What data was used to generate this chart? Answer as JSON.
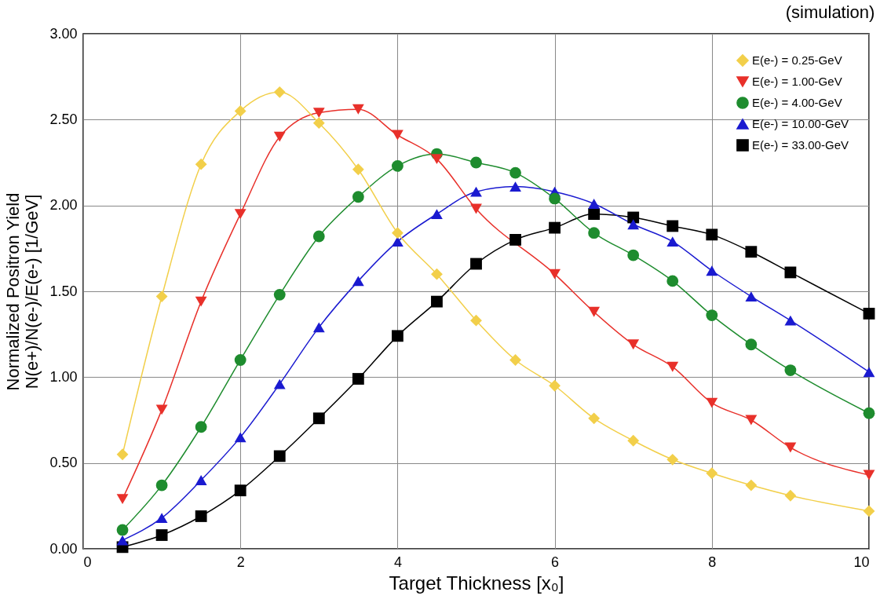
{
  "chart_data": {
    "type": "line",
    "title": "(simulation)",
    "xlabel": "Target Thickness [x₀]",
    "ylabel": "Normalized Positron Yield\nN(e+)/N(e-)/E(e-) [1/GeV]",
    "x": [
      0.5,
      1,
      1.5,
      2,
      2.5,
      3,
      3.5,
      4,
      4.5,
      5,
      5.5,
      6,
      6.5,
      7,
      7.5,
      8,
      8.5,
      9,
      10
    ],
    "series": [
      {
        "name": "E(e-) = 0.25-GeV",
        "color": "#f2cf4a",
        "marker": "diamond",
        "values": [
          0.55,
          1.47,
          2.24,
          2.55,
          2.66,
          2.48,
          2.21,
          1.84,
          1.6,
          1.33,
          1.1,
          0.95,
          0.76,
          0.63,
          0.52,
          0.44,
          0.37,
          0.31,
          0.22
        ]
      },
      {
        "name": "E(e-) = 1.00-GeV",
        "color": "#e8302a",
        "marker": "triangle-down",
        "values": [
          0.29,
          0.81,
          1.44,
          1.95,
          2.4,
          2.54,
          2.56,
          2.41,
          2.27,
          1.98,
          null,
          1.6,
          1.38,
          1.19,
          1.06,
          0.85,
          0.75,
          0.59,
          0.43
        ]
      },
      {
        "name": "E(e-) = 4.00-GeV",
        "color": "#1e8c2e",
        "marker": "circle",
        "values": [
          0.11,
          0.37,
          0.71,
          1.1,
          1.48,
          1.82,
          2.05,
          2.23,
          2.3,
          2.25,
          2.19,
          2.04,
          1.84,
          1.71,
          1.56,
          1.36,
          1.19,
          1.04,
          0.79
        ]
      },
      {
        "name": "E(e-) = 10.00-GeV",
        "color": "#1a1ad0",
        "marker": "triangle-up",
        "values": [
          0.05,
          0.18,
          0.4,
          0.65,
          0.96,
          1.29,
          1.56,
          1.79,
          1.95,
          2.08,
          2.11,
          2.08,
          2.01,
          1.89,
          1.79,
          1.62,
          1.47,
          1.33,
          1.03
        ]
      },
      {
        "name": "E(e-) = 33.00-GeV",
        "color": "#000000",
        "marker": "square",
        "values": [
          0.01,
          0.08,
          0.19,
          0.34,
          0.54,
          0.76,
          0.99,
          1.24,
          1.44,
          1.66,
          1.8,
          1.87,
          1.95,
          1.93,
          1.88,
          1.83,
          1.73,
          1.61,
          1.37
        ]
      }
    ],
    "xlim": [
      0,
      10
    ],
    "xticks": [
      0,
      2,
      4,
      6,
      8,
      10
    ],
    "ylim": [
      0,
      3
    ],
    "yticks": [
      {
        "value": 0,
        "label": "0.00"
      },
      {
        "value": 0.5,
        "label": "0.50"
      },
      {
        "value": 1,
        "label": "1.00"
      },
      {
        "value": 1.5,
        "label": "1.50"
      },
      {
        "value": 2,
        "label": "2.00"
      },
      {
        "value": 2.5,
        "label": "2.50"
      },
      {
        "value": 3,
        "label": "3.00"
      }
    ],
    "grid": true,
    "legend": "top right"
  }
}
